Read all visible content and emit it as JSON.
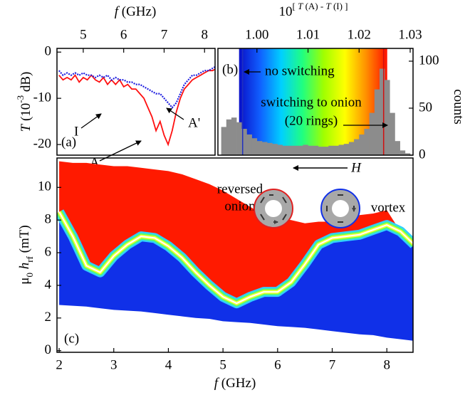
{
  "chart_data": [
    {
      "type": "line",
      "x_label": [
        {
          "text": "f",
          "style": "italic"
        },
        {
          "text": " (GHz)"
        }
      ],
      "y_label": [
        {
          "text": "T",
          "style": "italic"
        },
        {
          "text": " (10"
        },
        {
          "text": "-3",
          "style": "sup"
        },
        {
          "text": " dB)"
        }
      ],
      "x_axis": "top",
      "y_axis": "left",
      "xlim": [
        4.35,
        8.26
      ],
      "xticks": [
        5,
        6,
        7,
        8
      ],
      "ylim": [
        -22.3,
        0.8
      ],
      "yticks": [
        0,
        -10,
        -20
      ],
      "x": [
        4.4,
        4.5,
        4.6,
        4.7,
        4.8,
        4.9,
        5.0,
        5.1,
        5.2,
        5.3,
        5.4,
        5.5,
        5.6,
        5.7,
        5.8,
        5.9,
        6.0,
        6.1,
        6.2,
        6.3,
        6.4,
        6.5,
        6.6,
        6.7,
        6.8,
        6.9,
        7.0,
        7.1,
        7.2,
        7.3,
        7.4,
        7.5,
        7.6,
        7.7,
        7.8,
        7.9,
        8.0,
        8.1,
        8.2,
        8.3
      ],
      "series": [
        {
          "color": "#ff1010",
          "values": [
            -5,
            -6,
            -5.5,
            -6,
            -5,
            -6.5,
            -5.5,
            -6,
            -5,
            -6,
            -6.5,
            -5.5,
            -7,
            -6,
            -7,
            -6,
            -7.5,
            -7,
            -8,
            -8,
            -9,
            -10,
            -12,
            -14,
            -17,
            -15,
            -18,
            -20,
            -17,
            -13,
            -10,
            -8,
            -7,
            -6,
            -5.5,
            -5,
            -4.5,
            -4,
            -4,
            -3.5
          ]
        },
        {
          "color": "#2020e0",
          "linestyle": "dotted",
          "values": [
            -4,
            -5,
            -4.5,
            -5,
            -4.5,
            -5,
            -4.5,
            -5,
            -5,
            -5.5,
            -5,
            -5.5,
            -5,
            -6,
            -5.5,
            -6,
            -6,
            -6.5,
            -6.5,
            -7,
            -7,
            -7.5,
            -8,
            -8.5,
            -9,
            -9,
            -10,
            -11,
            -12,
            -11,
            -9,
            -7,
            -6,
            -5,
            -5,
            -4.5,
            -4,
            -4,
            -3.5,
            -3
          ]
        }
      ],
      "annotations": [
        {
          "text": "I",
          "color": "#1a1adb"
        },
        {
          "text": "A'",
          "color": "#10107a"
        },
        {
          "text": "A",
          "color": "#ff1010"
        },
        {
          "text": "(a)",
          "color": "#000000"
        }
      ]
    },
    {
      "type": "histogram",
      "x_label": [
        {
          "text": "10"
        },
        {
          "text": "[ ",
          "style": "sup"
        },
        {
          "text": "T",
          "style": "sup italic"
        },
        {
          "text": " (A) - ",
          "style": "sup"
        },
        {
          "text": "T",
          "style": "sup italic"
        },
        {
          "text": " (I) ]",
          "style": "sup"
        }
      ],
      "y_label": [
        {
          "text": "counts"
        }
      ],
      "x_axis": "top",
      "y_axis": "right",
      "xlim": [
        0.99236,
        1.03056
      ],
      "xticks": [
        {
          "value": 1.0,
          "label": "1.00"
        },
        {
          "value": 1.01,
          "label": "1.01"
        },
        {
          "value": 1.02,
          "label": "1.02"
        },
        {
          "value": 1.03,
          "label": "1.03"
        }
      ],
      "ylim": [
        0,
        113.6
      ],
      "yticks": [
        0,
        50,
        100
      ],
      "color": "#8c8c8c",
      "background": {
        "colors": [
          "#0a10c8",
          "#1060ff",
          "#00d0ff",
          "#20ff80",
          "#a0ff00",
          "#ffff00",
          "#ff9000",
          "#ff1000"
        ],
        "range": [
          0.9965,
          1.0255
        ]
      },
      "markers": [
        {
          "value": 0.9972,
          "color": "#2030c0"
        },
        {
          "value": 1.0248,
          "color": "#d01010"
        }
      ],
      "bins": [
        0.993,
        0.994,
        0.995,
        0.996,
        0.997,
        0.998,
        0.999,
        1.0,
        1.001,
        1.002,
        1.003,
        1.004,
        1.005,
        1.006,
        1.007,
        1.008,
        1.009,
        1.01,
        1.011,
        1.012,
        1.013,
        1.014,
        1.015,
        1.016,
        1.017,
        1.018,
        1.019,
        1.02,
        1.021,
        1.022,
        1.023,
        1.024,
        1.025,
        1.026,
        1.027,
        1.028,
        1.029,
        1.03
      ],
      "counts": [
        30,
        38,
        40,
        35,
        28,
        22,
        18,
        15,
        14,
        13,
        12,
        11,
        10,
        10,
        10,
        10,
        11,
        10,
        10,
        9,
        9,
        10,
        10,
        11,
        12,
        14,
        17,
        22,
        28,
        45,
        70,
        92,
        80,
        45,
        15,
        5,
        2
      ],
      "annotations": [
        {
          "text": "no switching",
          "color": "#000000"
        },
        {
          "text": "switching to onion",
          "color": "#000000"
        },
        {
          "text": "(20 rings)",
          "color": "#000000"
        },
        {
          "text": "(b)",
          "color": "#000000"
        }
      ]
    },
    {
      "type": "band",
      "x_label": [
        {
          "text": "f",
          "style": "italic"
        },
        {
          "text": " (GHz)"
        }
      ],
      "y_label": [
        {
          "text": "μ"
        },
        {
          "text": "0",
          "style": "sub"
        },
        {
          "text": " h",
          "style": "italic"
        },
        {
          "text": "rf",
          "style": "sub"
        },
        {
          "text": " (mT)"
        }
      ],
      "x_axis": "bottom",
      "y_axis": "left",
      "xlim": [
        1.96,
        8.48
      ],
      "xticks": [
        2,
        3,
        4,
        5,
        6,
        7,
        8
      ],
      "ylim": [
        -0.1,
        11.8
      ],
      "yticks": [
        0,
        2,
        4,
        6,
        8,
        10
      ],
      "x": [
        2.0,
        2.25,
        2.5,
        2.75,
        3.0,
        3.25,
        3.5,
        3.75,
        4.0,
        4.25,
        4.5,
        4.75,
        5.0,
        5.25,
        5.5,
        5.75,
        6.0,
        6.25,
        6.5,
        6.75,
        7.0,
        7.25,
        7.5,
        7.75,
        8.0,
        8.25,
        8.5
      ],
      "series": [
        {
          "fill": "#ff1a00",
          "values": [
            11.6,
            11.5,
            11.5,
            11.4,
            11.3,
            11.3,
            11.2,
            11.1,
            11.0,
            10.8,
            10.5,
            10.2,
            9.8,
            9.3,
            8.8,
            8.3,
            8.1,
            8.0,
            7.8,
            7.9,
            7.9,
            8.2,
            8.3,
            8.4,
            8.6,
            7.3,
            6.5
          ]
        },
        {
          "color": "#ffffff",
          "fill": "#1030e8",
          "values": [
            8.5,
            7.0,
            5.2,
            4.8,
            5.8,
            6.5,
            7.0,
            6.9,
            6.4,
            5.7,
            4.8,
            4.0,
            3.3,
            2.9,
            3.3,
            3.6,
            3.6,
            4.2,
            5.3,
            6.5,
            6.9,
            7.0,
            7.1,
            7.4,
            7.7,
            7.3,
            6.5
          ]
        },
        {
          "values": [
            2.8,
            2.75,
            2.7,
            2.6,
            2.5,
            2.45,
            2.4,
            2.3,
            2.2,
            2.1,
            2.0,
            1.95,
            1.8,
            1.75,
            1.7,
            1.6,
            1.5,
            1.45,
            1.4,
            1.3,
            1.2,
            1.1,
            1.0,
            0.95,
            0.8,
            0.7,
            0.6
          ]
        }
      ],
      "annotations": [
        {
          "text": "reversed",
          "color": "#ff1a00"
        },
        {
          "text": "onion",
          "color": "#ff1a00"
        },
        {
          "text": "vortex",
          "color": "#1030e8"
        },
        {
          "text": "H",
          "color": "#000000",
          "style": "italic"
        },
        {
          "text": "(c)",
          "color": "#000000"
        }
      ]
    }
  ]
}
